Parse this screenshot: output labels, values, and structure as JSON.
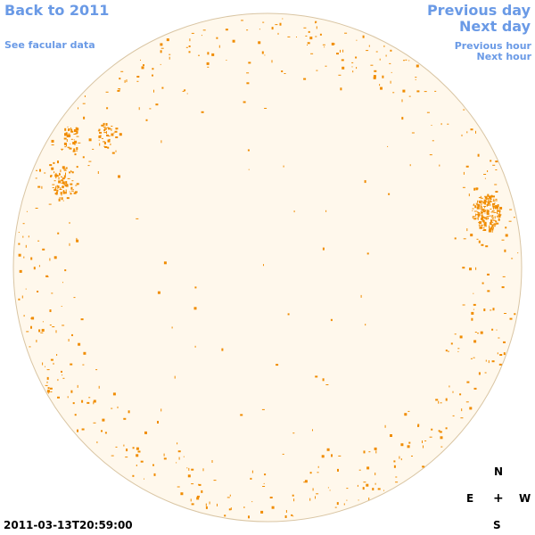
{
  "nav": {
    "back": "Back to 2011",
    "facular": "See facular data",
    "prev_day": "Previous day",
    "next_day": "Next day",
    "prev_hour": "Previous hour",
    "next_hour": "Next hour"
  },
  "timestamp": "2011-03-13T20:59:00",
  "compass": {
    "north": "N",
    "east": "E",
    "center": "+",
    "west": "W",
    "south": "S"
  },
  "colors": {
    "link": "#6a9ae6",
    "disk_fill": "#fff8ec",
    "disk_edge": "#d9c5a3",
    "feature": "#f08c00"
  }
}
